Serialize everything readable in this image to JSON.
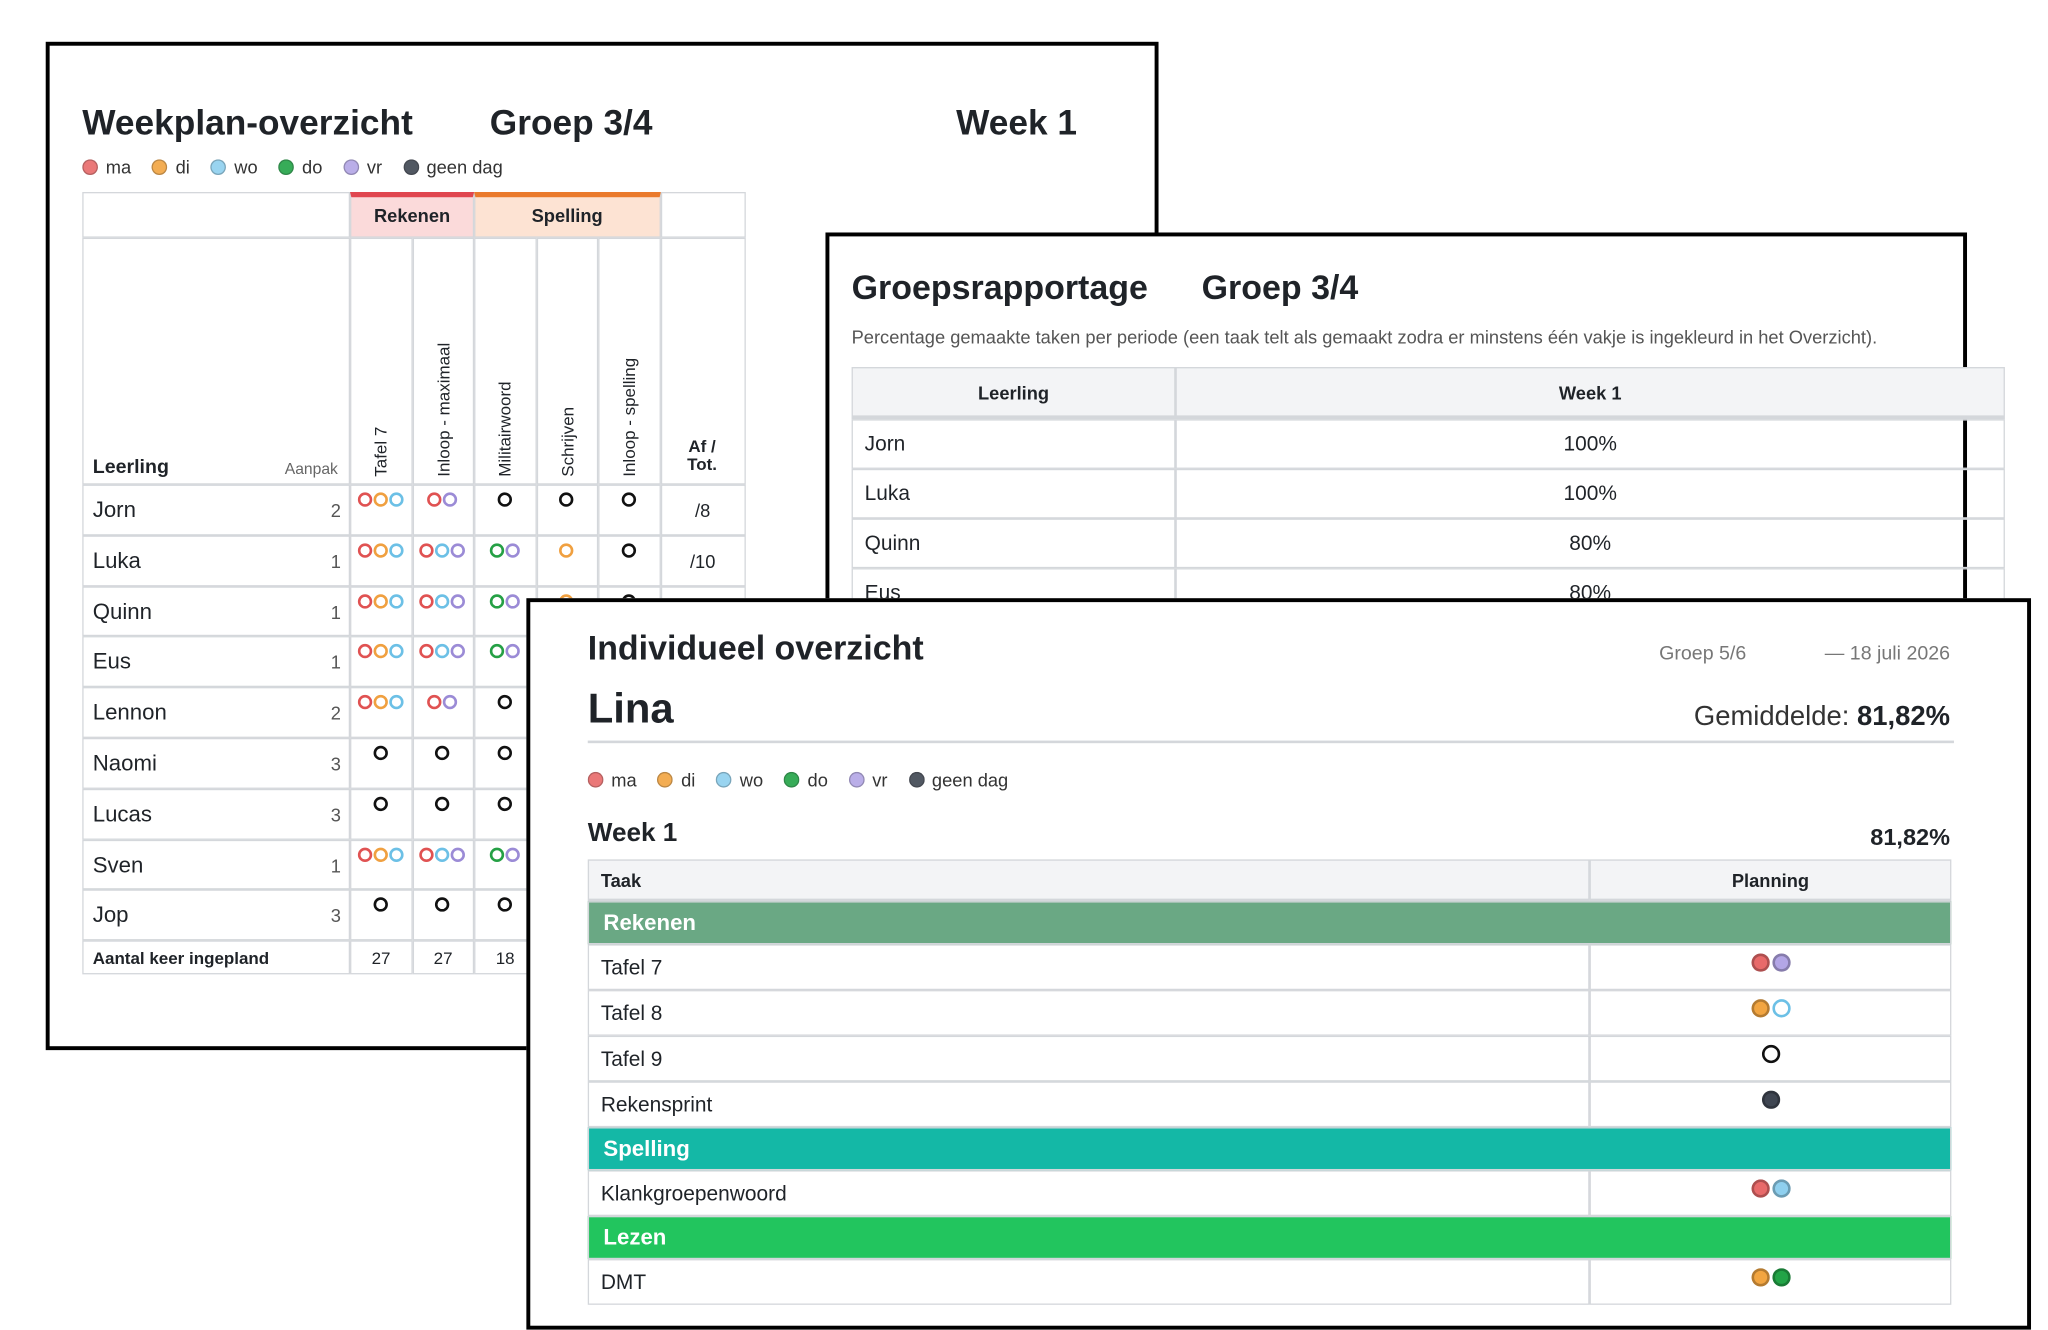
{
  "weekplan": {
    "title": "Weekplan-overzicht",
    "group": "Groep 3/4",
    "week": "Week 1",
    "legend": [
      {
        "label": "ma",
        "color": "#e86a6a"
      },
      {
        "label": "di",
        "color": "#f2a541"
      },
      {
        "label": "wo",
        "color": "#8fd0ef"
      },
      {
        "label": "do",
        "color": "#22a447"
      },
      {
        "label": "vr",
        "color": "#b3a6e6"
      },
      {
        "label": "geen dag",
        "color": "#3f4652"
      }
    ],
    "table": {
      "student_header": "Leerling",
      "approach_header": "Aanpak",
      "subjects": [
        {
          "name": "Rekenen",
          "color": "#e0464f",
          "fill": "#fbdada",
          "tasks": [
            "Tafel 7",
            "Inloop - maximaal"
          ]
        },
        {
          "name": "Spelling",
          "color": "#ea7a2c",
          "fill": "#fde3d3",
          "tasks": [
            "Militairwoord",
            "Schrijven",
            "Inloop - spelling"
          ]
        }
      ],
      "total_header": "Af / Tot.",
      "rows": [
        {
          "name": "Jorn",
          "approach": 2,
          "cells": [
            [
              "#e05252",
              "#f0a040",
              "#6cc0e6"
            ],
            [
              "#e05252",
              "#9b8bd6"
            ],
            [
              "#111111"
            ],
            [
              "#111111"
            ],
            [
              "#111111"
            ]
          ],
          "total": "/8"
        },
        {
          "name": "Luka",
          "approach": 1,
          "cells": [
            [
              "#e05252",
              "#f0a040",
              "#6cc0e6"
            ],
            [
              "#e05252",
              "#6cc0e6",
              "#9b8bd6"
            ],
            [
              "#25a045",
              "#9b8bd6"
            ],
            [
              "#f0a040"
            ],
            [
              "#111111"
            ]
          ],
          "total": "/10"
        },
        {
          "name": "Quinn",
          "approach": 1,
          "cells": [
            [
              "#e05252",
              "#f0a040",
              "#6cc0e6"
            ],
            [
              "#e05252",
              "#6cc0e6",
              "#9b8bd6"
            ],
            [
              "#25a045",
              "#9b8bd6"
            ],
            [
              "#f0a040"
            ],
            [
              "#111111"
            ]
          ],
          "total": null
        },
        {
          "name": "Eus",
          "approach": 1,
          "cells": [
            [
              "#e05252",
              "#f0a040",
              "#6cc0e6"
            ],
            [
              "#e05252",
              "#6cc0e6",
              "#9b8bd6"
            ],
            [
              "#25a045",
              "#9b8bd6"
            ],
            null,
            null
          ],
          "total": null
        },
        {
          "name": "Lennon",
          "approach": 2,
          "cells": [
            [
              "#e05252",
              "#f0a040",
              "#6cc0e6"
            ],
            [
              "#e05252",
              "#9b8bd6"
            ],
            [
              "#111111"
            ],
            null,
            null
          ],
          "total": null
        },
        {
          "name": "Naomi",
          "approach": 3,
          "cells": [
            [
              "#111111"
            ],
            [
              "#111111"
            ],
            [
              "#111111"
            ],
            null,
            null
          ],
          "total": null
        },
        {
          "name": "Lucas",
          "approach": 3,
          "cells": [
            [
              "#111111"
            ],
            [
              "#111111"
            ],
            [
              "#111111"
            ],
            null,
            null
          ],
          "total": null
        },
        {
          "name": "Sven",
          "approach": 1,
          "cells": [
            [
              "#e05252",
              "#f0a040",
              "#6cc0e6"
            ],
            [
              "#e05252",
              "#6cc0e6",
              "#9b8bd6"
            ],
            [
              "#25a045",
              "#9b8bd6"
            ],
            null,
            null
          ],
          "total": null
        },
        {
          "name": "Jop",
          "approach": 3,
          "cells": [
            [
              "#111111"
            ],
            [
              "#111111"
            ],
            [
              "#111111"
            ],
            null,
            null
          ],
          "total": null
        }
      ],
      "footer": {
        "label": "Aantal keer ingepland",
        "counts": [
          27,
          27,
          18,
          null,
          null
        ]
      }
    }
  },
  "group_report": {
    "title": "Groepsrapportage",
    "group": "Groep 3/4",
    "description": "Percentage gemaakte taken per periode (een taak telt als gemaakt zodra er minstens één vakje is ingekleurd in het Overzicht).",
    "columns": [
      "Leerling",
      "Week 1"
    ],
    "rows": [
      [
        "Jorn",
        "100%"
      ],
      [
        "Luka",
        "100%"
      ],
      [
        "Quinn",
        "80%"
      ],
      [
        "Eus",
        "80%"
      ]
    ]
  },
  "individual": {
    "title": "Individueel overzicht",
    "group": "Groep 5/6",
    "date": "— 18 juli 2026",
    "student": "Lina",
    "average_label": "Gemiddelde:",
    "average": "81,82%",
    "legend": [
      {
        "label": "ma",
        "color": "#e86a6a"
      },
      {
        "label": "di",
        "color": "#f2a541"
      },
      {
        "label": "wo",
        "color": "#8fd0ef"
      },
      {
        "label": "do",
        "color": "#22a447"
      },
      {
        "label": "vr",
        "color": "#b3a6e6"
      },
      {
        "label": "geen dag",
        "color": "#3f4652"
      }
    ],
    "week": "Week 1",
    "week_score": "81,82%",
    "columns": [
      "Taak",
      "Planning"
    ],
    "sections": [
      {
        "name": "Rekenen",
        "color": "#6aa884",
        "tasks": [
          {
            "name": "Tafel 7",
            "planning": [
              {
                "color": "#e86a6a",
                "filled": true
              },
              {
                "color": "#b3a6e6",
                "filled": true
              }
            ]
          },
          {
            "name": "Tafel 8",
            "planning": [
              {
                "color": "#f2a541",
                "filled": true
              },
              {
                "color": "#6cc0e6",
                "filled": false
              }
            ]
          },
          {
            "name": "Tafel 9",
            "planning": [
              {
                "color": "#111111",
                "filled": false
              }
            ]
          },
          {
            "name": "Rekensprint",
            "planning": [
              {
                "color": "#3f4652",
                "filled": true
              }
            ]
          }
        ]
      },
      {
        "name": "Spelling",
        "color": "#14b8a6",
        "tasks": [
          {
            "name": "Klankgroepenwoord",
            "planning": [
              {
                "color": "#e86a6a",
                "filled": true
              },
              {
                "color": "#8fd0ef",
                "filled": true
              }
            ]
          }
        ]
      },
      {
        "name": "Lezen",
        "color": "#22c55e",
        "tasks": [
          {
            "name": "DMT",
            "planning": [
              {
                "color": "#f2a541",
                "filled": true
              },
              {
                "color": "#22a447",
                "filled": true
              }
            ]
          }
        ]
      }
    ]
  }
}
